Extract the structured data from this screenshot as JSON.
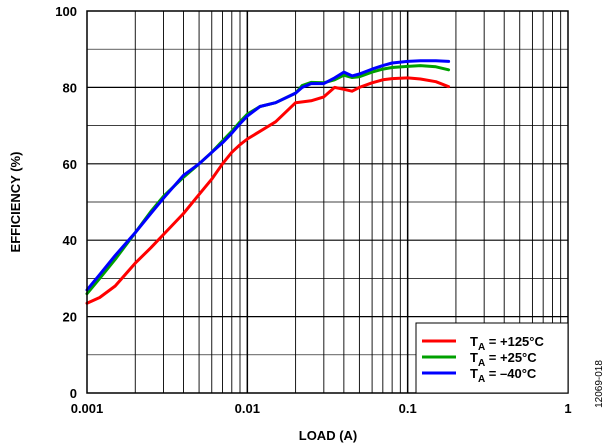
{
  "chart_data": {
    "type": "line",
    "xscale": "log",
    "xlim": [
      0.001,
      1
    ],
    "ylim": [
      0,
      100
    ],
    "grid": true,
    "xlabel": "LOAD (A)",
    "ylabel": "EFFICIENCY (%)",
    "x_ticks": [
      "0.001",
      "0.01",
      "0.1",
      "1"
    ],
    "y_ticks": [
      "0",
      "20",
      "40",
      "60",
      "80",
      "100"
    ],
    "legend_position": "bottom-right",
    "figure_id": "12069-018",
    "series": [
      {
        "name_prefix": "T",
        "name_sub": "A",
        "name_suffix": " = +125°C",
        "color": "#ff0000",
        "points": [
          [
            0.001,
            23.5
          ],
          [
            0.0012,
            25
          ],
          [
            0.0015,
            28
          ],
          [
            0.002,
            34
          ],
          [
            0.0025,
            38
          ],
          [
            0.003,
            41.5
          ],
          [
            0.004,
            47
          ],
          [
            0.005,
            52
          ],
          [
            0.006,
            56
          ],
          [
            0.007,
            60
          ],
          [
            0.008,
            63
          ],
          [
            0.009,
            65
          ],
          [
            0.01,
            66.5
          ],
          [
            0.012,
            68.5
          ],
          [
            0.015,
            71
          ],
          [
            0.02,
            76
          ],
          [
            0.025,
            76.5
          ],
          [
            0.03,
            77.5
          ],
          [
            0.035,
            80
          ],
          [
            0.04,
            79.5
          ],
          [
            0.045,
            79
          ],
          [
            0.05,
            80
          ],
          [
            0.06,
            81.2
          ],
          [
            0.07,
            82
          ],
          [
            0.08,
            82.3
          ],
          [
            0.1,
            82.5
          ],
          [
            0.12,
            82.2
          ],
          [
            0.15,
            81.5
          ],
          [
            0.18,
            80.2
          ]
        ]
      },
      {
        "name_prefix": "T",
        "name_sub": "A",
        "name_suffix": " = +25°C",
        "color": "#00a000",
        "points": [
          [
            0.001,
            26
          ],
          [
            0.0012,
            30
          ],
          [
            0.0015,
            35
          ],
          [
            0.002,
            42
          ],
          [
            0.0025,
            47.5
          ],
          [
            0.003,
            51.5
          ],
          [
            0.004,
            56.5
          ],
          [
            0.005,
            60
          ],
          [
            0.006,
            63
          ],
          [
            0.007,
            66
          ],
          [
            0.008,
            68.5
          ],
          [
            0.009,
            71
          ],
          [
            0.01,
            73
          ],
          [
            0.012,
            75
          ],
          [
            0.015,
            76
          ],
          [
            0.02,
            78.5
          ],
          [
            0.022,
            80.5
          ],
          [
            0.025,
            81.3
          ],
          [
            0.03,
            81.2
          ],
          [
            0.035,
            82
          ],
          [
            0.04,
            83.2
          ],
          [
            0.045,
            82.6
          ],
          [
            0.05,
            82.8
          ],
          [
            0.06,
            84
          ],
          [
            0.07,
            84.8
          ],
          [
            0.08,
            85.2
          ],
          [
            0.1,
            85.5
          ],
          [
            0.12,
            85.7
          ],
          [
            0.15,
            85.4
          ],
          [
            0.18,
            84.6
          ]
        ]
      },
      {
        "name_prefix": "T",
        "name_sub": "A",
        "name_suffix": " = –40°C",
        "color": "#0000ff",
        "points": [
          [
            0.001,
            27
          ],
          [
            0.0012,
            31
          ],
          [
            0.0015,
            36
          ],
          [
            0.002,
            42
          ],
          [
            0.0025,
            47
          ],
          [
            0.003,
            51
          ],
          [
            0.004,
            57
          ],
          [
            0.005,
            60
          ],
          [
            0.006,
            63
          ],
          [
            0.007,
            65.5
          ],
          [
            0.008,
            68
          ],
          [
            0.009,
            70.5
          ],
          [
            0.01,
            72.5
          ],
          [
            0.012,
            75
          ],
          [
            0.015,
            76
          ],
          [
            0.02,
            78.5
          ],
          [
            0.022,
            80
          ],
          [
            0.025,
            81
          ],
          [
            0.03,
            81
          ],
          [
            0.035,
            82.5
          ],
          [
            0.04,
            84
          ],
          [
            0.045,
            83
          ],
          [
            0.05,
            83.5
          ],
          [
            0.06,
            84.8
          ],
          [
            0.07,
            85.7
          ],
          [
            0.08,
            86.4
          ],
          [
            0.1,
            86.8
          ],
          [
            0.12,
            87
          ],
          [
            0.15,
            87
          ],
          [
            0.18,
            86.8
          ]
        ]
      }
    ]
  }
}
